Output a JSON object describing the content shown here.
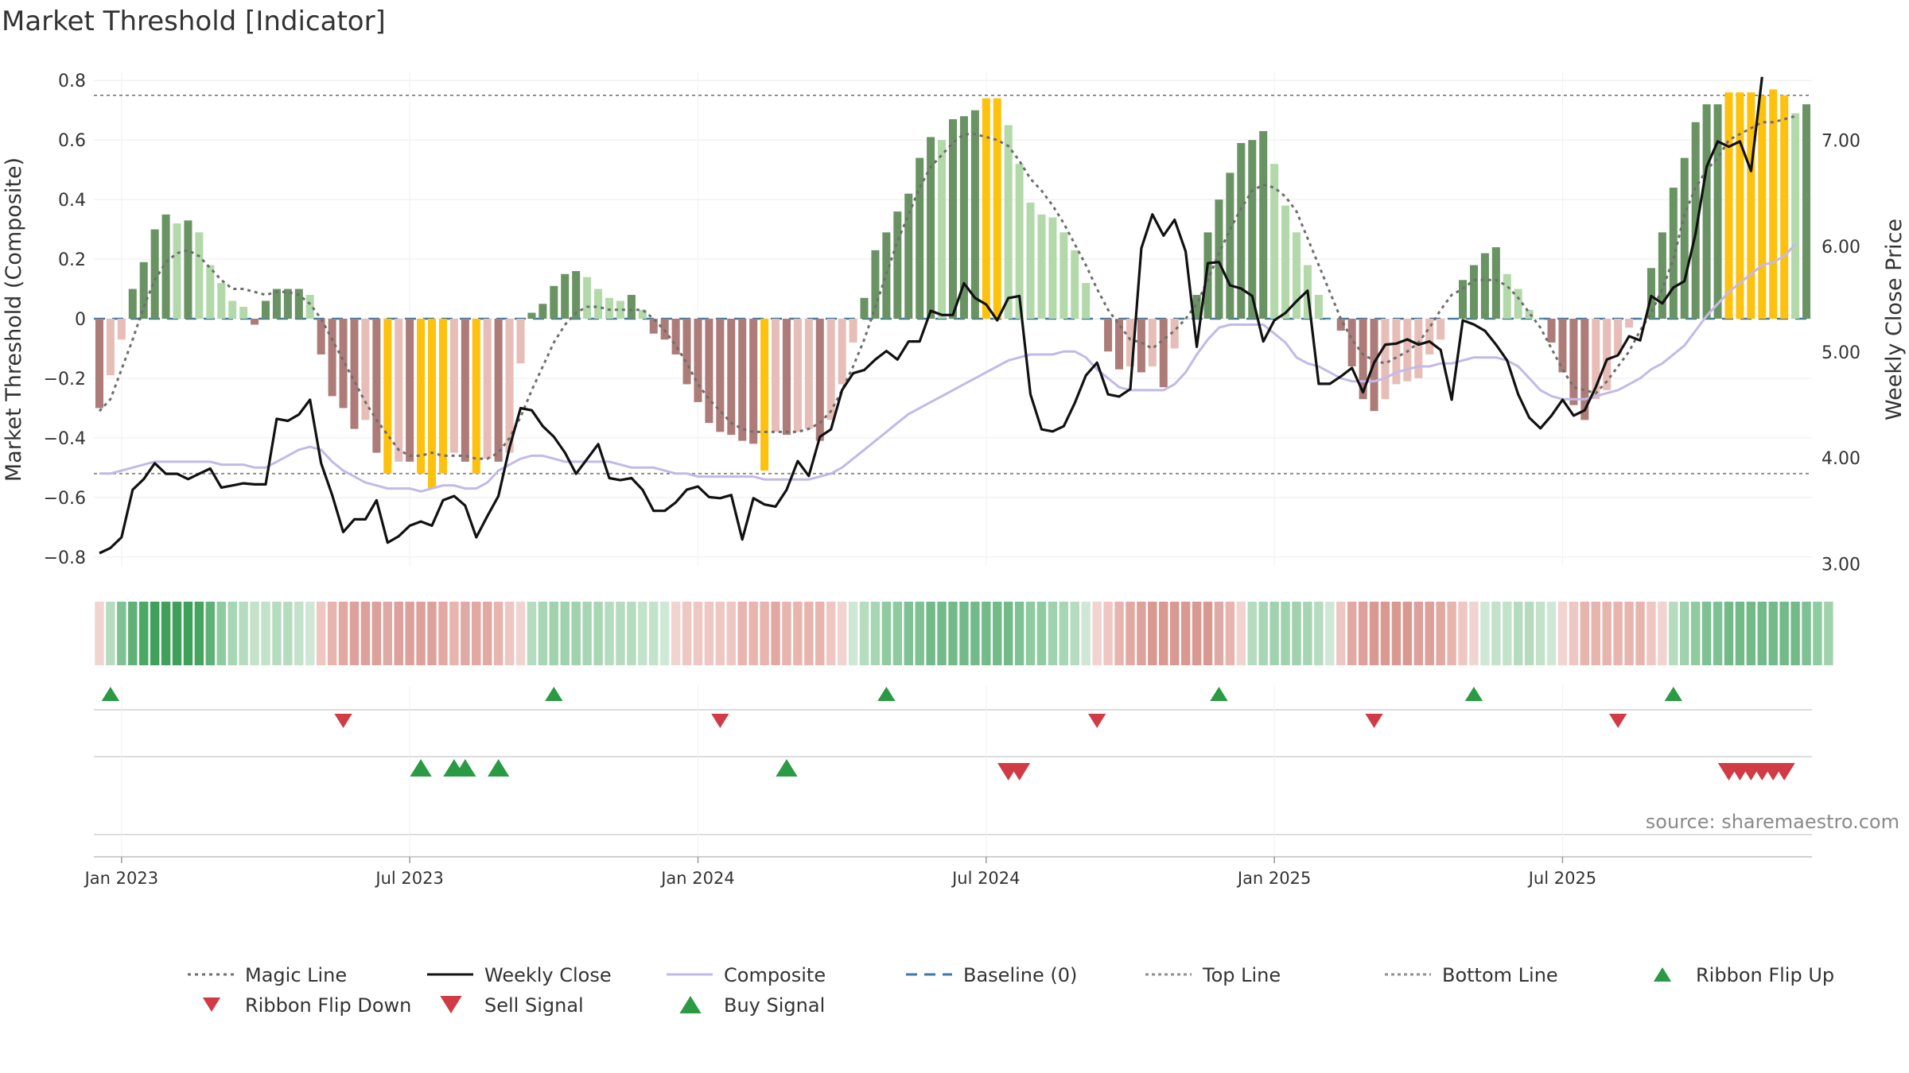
{
  "chart_data": {
    "type": "bar+line",
    "title": "Market Threshold [Indicator]",
    "ylabel": "Market Threshold (Composite)",
    "y2label": "Weekly Close Price",
    "ylim": [
      -0.83,
      0.83
    ],
    "y2lim": [
      2.98,
      7.65
    ],
    "yticks": [
      "0.8",
      "0.6",
      "0.4",
      "0.2",
      "0",
      "−0.2",
      "−0.4",
      "−0.6",
      "−0.8"
    ],
    "ytick_values": [
      0.8,
      0.6,
      0.4,
      0.2,
      0,
      -0.2,
      -0.4,
      -0.6,
      -0.8
    ],
    "y2ticks": [
      "7.00",
      "6.00",
      "5.00",
      "4.00",
      "3.00"
    ],
    "y2tick_values": [
      7,
      6,
      5,
      4,
      3
    ],
    "xticks": [
      "Jan 2023",
      "Jul 2023",
      "Jan 2024",
      "Jul 2024",
      "Jan 2025",
      "Jul 2025"
    ],
    "xtick_weeks": [
      2,
      28,
      54,
      80,
      106,
      132
    ],
    "source": "source: sharemaestro.com",
    "top_line": 0.75,
    "bottom_line": -0.52,
    "baseline": 0,
    "colors": {
      "pos_dark": "#6a9364",
      "pos_light": "#b3d9ab",
      "neg_dark": "#ad7c78",
      "neg_light": "#e7bdb8",
      "extreme": "#fdc10e",
      "close": "#111111",
      "composite": "#c3b9e8",
      "magic": "#6e6e6e",
      "baseline": "#3b7aa8",
      "guide": "#8f8f8f",
      "up": "#2a9a44",
      "down": "#d03b45"
    },
    "series": [
      {
        "name": "Market Threshold Histogram",
        "values": [
          -0.3,
          -0.19,
          -0.07,
          0.1,
          0.19,
          0.3,
          0.35,
          0.32,
          0.33,
          0.29,
          0.18,
          0.12,
          0.06,
          0.04,
          -0.02,
          0.06,
          0.1,
          0.1,
          0.1,
          0.08,
          -0.12,
          -0.26,
          -0.3,
          -0.37,
          -0.34,
          -0.45,
          -0.52,
          -0.48,
          -0.48,
          -0.52,
          -0.57,
          -0.52,
          -0.45,
          -0.48,
          -0.52,
          -0.47,
          -0.48,
          -0.45,
          -0.15,
          0.02,
          0.05,
          0.11,
          0.15,
          0.16,
          0.14,
          0.1,
          0.07,
          0.06,
          0.08,
          0.03,
          -0.05,
          -0.07,
          -0.12,
          -0.22,
          -0.28,
          -0.35,
          -0.38,
          -0.39,
          -0.41,
          -0.42,
          -0.51,
          -0.38,
          -0.39,
          -0.38,
          -0.37,
          -0.41,
          -0.34,
          -0.22,
          -0.08,
          0.07,
          0.23,
          0.29,
          0.36,
          0.42,
          0.54,
          0.61,
          0.6,
          0.67,
          0.68,
          0.7,
          0.74,
          0.74,
          0.65,
          0.52,
          0.39,
          0.35,
          0.34,
          0.29,
          0.23,
          0.12,
          0.0,
          -0.11,
          -0.17,
          -0.16,
          -0.18,
          -0.16,
          -0.23,
          -0.1,
          0.0,
          0.08,
          0.29,
          0.4,
          0.49,
          0.59,
          0.6,
          0.63,
          0.52,
          0.38,
          0.29,
          0.18,
          0.08,
          0.0,
          -0.04,
          -0.16,
          -0.27,
          -0.31,
          -0.27,
          -0.22,
          -0.21,
          -0.2,
          -0.12,
          -0.07,
          0.0,
          0.13,
          0.18,
          0.22,
          0.24,
          0.15,
          0.1,
          0.03,
          0.0,
          -0.08,
          -0.18,
          -0.29,
          -0.34,
          -0.27,
          -0.24,
          -0.12,
          -0.03,
          0.0,
          0.17,
          0.29,
          0.44,
          0.54,
          0.66,
          0.72,
          0.72,
          0.76,
          0.76,
          0.76,
          0.75,
          0.77,
          0.75,
          0.69,
          0.72
        ]
      },
      {
        "name": "Magic Line",
        "values": [
          -0.31,
          -0.27,
          -0.17,
          -0.07,
          0.04,
          0.13,
          0.19,
          0.22,
          0.23,
          0.21,
          0.17,
          0.13,
          0.1,
          0.1,
          0.09,
          0.08,
          0.09,
          0.09,
          0.08,
          0.05,
          0.0,
          -0.07,
          -0.14,
          -0.21,
          -0.28,
          -0.34,
          -0.39,
          -0.44,
          -0.46,
          -0.46,
          -0.45,
          -0.46,
          -0.46,
          -0.46,
          -0.47,
          -0.47,
          -0.45,
          -0.4,
          -0.33,
          -0.24,
          -0.16,
          -0.08,
          -0.02,
          0.02,
          0.04,
          0.04,
          0.03,
          0.03,
          0.03,
          0.03,
          0.0,
          -0.04,
          -0.09,
          -0.15,
          -0.22,
          -0.27,
          -0.31,
          -0.35,
          -0.37,
          -0.38,
          -0.38,
          -0.38,
          -0.38,
          -0.38,
          -0.37,
          -0.35,
          -0.31,
          -0.24,
          -0.16,
          -0.07,
          0.04,
          0.15,
          0.26,
          0.35,
          0.44,
          0.51,
          0.55,
          0.59,
          0.62,
          0.62,
          0.61,
          0.6,
          0.58,
          0.53,
          0.47,
          0.43,
          0.38,
          0.32,
          0.25,
          0.18,
          0.1,
          0.03,
          -0.02,
          -0.07,
          -0.08,
          -0.1,
          -0.07,
          -0.04,
          0.0,
          0.05,
          0.13,
          0.22,
          0.3,
          0.37,
          0.43,
          0.45,
          0.44,
          0.41,
          0.36,
          0.27,
          0.18,
          0.09,
          0.0,
          -0.07,
          -0.12,
          -0.14,
          -0.15,
          -0.13,
          -0.11,
          -0.08,
          -0.03,
          0.03,
          0.08,
          0.1,
          0.13,
          0.13,
          0.13,
          0.11,
          0.07,
          0.02,
          -0.03,
          -0.1,
          -0.17,
          -0.23,
          -0.24,
          -0.25,
          -0.21,
          -0.16,
          -0.11,
          -0.04,
          0.02,
          0.1,
          0.2,
          0.35,
          0.44,
          0.5,
          0.54,
          0.6,
          0.62,
          0.64,
          0.66,
          0.66,
          0.67,
          0.68
        ]
      },
      {
        "name": "Composite",
        "values": [
          -0.52,
          -0.52,
          -0.51,
          -0.5,
          -0.49,
          -0.48,
          -0.48,
          -0.48,
          -0.48,
          -0.48,
          -0.48,
          -0.49,
          -0.49,
          -0.49,
          -0.5,
          -0.5,
          -0.48,
          -0.46,
          -0.44,
          -0.43,
          -0.44,
          -0.48,
          -0.51,
          -0.53,
          -0.55,
          -0.56,
          -0.57,
          -0.57,
          -0.57,
          -0.58,
          -0.57,
          -0.56,
          -0.56,
          -0.57,
          -0.57,
          -0.55,
          -0.51,
          -0.49,
          -0.47,
          -0.46,
          -0.46,
          -0.47,
          -0.48,
          -0.48,
          -0.48,
          -0.48,
          -0.48,
          -0.49,
          -0.5,
          -0.5,
          -0.5,
          -0.51,
          -0.52,
          -0.52,
          -0.53,
          -0.53,
          -0.53,
          -0.53,
          -0.53,
          -0.53,
          -0.54,
          -0.54,
          -0.54,
          -0.54,
          -0.54,
          -0.53,
          -0.52,
          -0.5,
          -0.47,
          -0.44,
          -0.41,
          -0.38,
          -0.35,
          -0.32,
          -0.3,
          -0.28,
          -0.26,
          -0.24,
          -0.22,
          -0.2,
          -0.18,
          -0.16,
          -0.14,
          -0.13,
          -0.12,
          -0.12,
          -0.12,
          -0.11,
          -0.11,
          -0.13,
          -0.17,
          -0.2,
          -0.23,
          -0.24,
          -0.24,
          -0.24,
          -0.24,
          -0.22,
          -0.18,
          -0.12,
          -0.07,
          -0.03,
          -0.02,
          -0.02,
          -0.02,
          -0.02,
          -0.05,
          -0.08,
          -0.13,
          -0.15,
          -0.16,
          -0.18,
          -0.2,
          -0.21,
          -0.21,
          -0.21,
          -0.2,
          -0.18,
          -0.17,
          -0.16,
          -0.16,
          -0.15,
          -0.15,
          -0.14,
          -0.13,
          -0.13,
          -0.13,
          -0.14,
          -0.16,
          -0.2,
          -0.24,
          -0.26,
          -0.27,
          -0.27,
          -0.27,
          -0.26,
          -0.25,
          -0.24,
          -0.22,
          -0.2,
          -0.17,
          -0.15,
          -0.12,
          -0.09,
          -0.04,
          0.01,
          0.05,
          0.09,
          0.12,
          0.15,
          0.18,
          0.19,
          0.21,
          0.25
        ]
      },
      {
        "name": "Weekly Close",
        "values": [
          3.1,
          3.15,
          3.25,
          3.7,
          3.8,
          3.95,
          3.85,
          3.85,
          3.8,
          3.85,
          3.9,
          3.72,
          3.74,
          3.76,
          3.75,
          3.75,
          4.37,
          4.35,
          4.41,
          4.55,
          3.95,
          3.65,
          3.3,
          3.42,
          3.42,
          3.6,
          3.2,
          3.26,
          3.36,
          3.4,
          3.36,
          3.6,
          3.64,
          3.55,
          3.25,
          3.45,
          3.64,
          4.1,
          4.47,
          4.45,
          4.3,
          4.2,
          4.05,
          3.85,
          3.99,
          4.13,
          3.81,
          3.79,
          3.81,
          3.7,
          3.5,
          3.5,
          3.58,
          3.7,
          3.73,
          3.63,
          3.62,
          3.65,
          3.23,
          3.62,
          3.56,
          3.54,
          3.7,
          3.97,
          3.83,
          4.2,
          4.27,
          4.64,
          4.8,
          4.83,
          4.93,
          5.01,
          4.93,
          5.1,
          5.1,
          5.39,
          5.35,
          5.35,
          5.65,
          5.51,
          5.45,
          5.3,
          5.51,
          5.53,
          4.6,
          4.27,
          4.25,
          4.3,
          4.52,
          4.78,
          4.9,
          4.6,
          4.58,
          4.65,
          5.98,
          6.3,
          6.1,
          6.25,
          5.95,
          5.05,
          5.84,
          5.85,
          5.63,
          5.6,
          5.53,
          5.1,
          5.3,
          5.37,
          5.48,
          5.58,
          4.7,
          4.7,
          4.77,
          4.85,
          4.62,
          4.9,
          5.07,
          5.08,
          5.12,
          5.07,
          5.1,
          5.02,
          4.55,
          5.3,
          5.26,
          5.2,
          5.07,
          4.92,
          4.6,
          4.38,
          4.28,
          4.4,
          4.55,
          4.4,
          4.45,
          4.67,
          4.93,
          4.97,
          5.15,
          5.11,
          5.53,
          5.46,
          5.61,
          5.67,
          6.12,
          6.75,
          6.99,
          6.94,
          6.99,
          6.71,
          7.6
        ]
      }
    ],
    "ribbon": [
      "#f1d3d0",
      "#b5dcbe",
      "#7ec194",
      "#5fb177",
      "#4aa965",
      "#3ea05a",
      "#3ea05a",
      "#3ea05a",
      "#3ea05a",
      "#45a55f",
      "#5fb177",
      "#8ecb9f",
      "#a7d6b4",
      "#b5dcbe",
      "#c2e2c9",
      "#c2e2c9",
      "#b5dcbe",
      "#b5dcbe",
      "#c2e2c9",
      "#cfe8d5",
      "#eec7c3",
      "#e8b4ae",
      "#e2a8a2",
      "#dea09a",
      "#dea09a",
      "#dea09a",
      "#deaaa5",
      "#dea09a",
      "#dea09a",
      "#dea09a",
      "#dea09a",
      "#e2a8a2",
      "#e8b4ae",
      "#deaaa5",
      "#e2a8a2",
      "#e2a8a2",
      "#e8b4ae",
      "#eec7c3",
      "#f1d3d0",
      "#b5dcbe",
      "#a7d6b4",
      "#9fd2ad",
      "#9fd2ad",
      "#9fd2ad",
      "#a7d6b4",
      "#a7d6b4",
      "#b5dcbe",
      "#b5dcbe",
      "#b5dcbe",
      "#c2e2c9",
      "#c2e2c9",
      "#cfe8d5",
      "#f1d3d0",
      "#eec7c3",
      "#eec7c3",
      "#eec7c3",
      "#eec7c3",
      "#eec7c3",
      "#e8b4ae",
      "#e8b4ae",
      "#e8b4ae",
      "#e2a8a2",
      "#e8b4ae",
      "#e8b4ae",
      "#e8b4ae",
      "#e8b4ae",
      "#eec7c3",
      "#f1d3d0",
      "#cfe8d5",
      "#b5dcbe",
      "#a7d6b4",
      "#8ecb9f",
      "#8ecb9f",
      "#7ec194",
      "#7ec194",
      "#72bb89",
      "#72bb89",
      "#72bb89",
      "#72bb89",
      "#72bb89",
      "#72bb89",
      "#72bb89",
      "#72bb89",
      "#7ec194",
      "#8ecb9f",
      "#8ecb9f",
      "#9fd2ad",
      "#a7d6b4",
      "#b5dcbe",
      "#cfe8d5",
      "#f1d3d0",
      "#eec7c3",
      "#e8b4ae",
      "#e2a8a2",
      "#dea09a",
      "#d99890",
      "#d99890",
      "#d99890",
      "#d99890",
      "#d99890",
      "#d99890",
      "#deaaa5",
      "#e8b4ae",
      "#f1d3d0",
      "#b5dcbe",
      "#a7d6b4",
      "#9fd2ad",
      "#9fd2ad",
      "#9fd2ad",
      "#a7d6b4",
      "#b5dcbe",
      "#cfe8d5",
      "#eec7c3",
      "#e2a8a2",
      "#dea09a",
      "#d99890",
      "#d99890",
      "#d99890",
      "#d99890",
      "#dea09a",
      "#dea09a",
      "#e2a8a2",
      "#e8b4ae",
      "#eec7c3",
      "#f1d3d0",
      "#cfe8d5",
      "#c2e2c9",
      "#c2e2c9",
      "#b5dcbe",
      "#b5dcbe",
      "#c2e2c9",
      "#cfe8d5",
      "#f1d3d0",
      "#eec7c3",
      "#e8b4ae",
      "#e8b4ae",
      "#e8b4ae",
      "#e8b4ae",
      "#e8b4ae",
      "#e8b4ae",
      "#eec7c3",
      "#f1d3d0",
      "#b5dcbe",
      "#9fd2ad",
      "#8ecb9f",
      "#7ec194",
      "#7ec194",
      "#72bb89",
      "#72bb89",
      "#72bb89",
      "#72bb89",
      "#72bb89",
      "#72bb89",
      "#72bb89",
      "#7ec194",
      "#8ecb9f",
      "#9fd2ad"
    ],
    "ribbon_flip_up_weeks": [
      1,
      41,
      71,
      101,
      124,
      142
    ],
    "ribbon_flip_down_weeks": [
      22,
      56,
      90,
      115,
      137
    ],
    "buy_signal_weeks": [
      29,
      32,
      33,
      36,
      62
    ],
    "sell_signal_weeks": [
      82,
      83,
      147,
      148,
      149,
      150,
      151,
      152
    ]
  },
  "legend": [
    {
      "label": "Magic Line",
      "icon": "dotted-line"
    },
    {
      "label": "Weekly Close",
      "icon": "solid-line"
    },
    {
      "label": "Composite",
      "icon": "solid-line"
    },
    {
      "label": "Baseline (0)",
      "icon": "dashed-line"
    },
    {
      "label": "Top Line",
      "icon": "dotted-line"
    },
    {
      "label": "Bottom Line",
      "icon": "dotted-line"
    },
    {
      "label": "Ribbon Flip Up",
      "icon": "triangle-up-icon"
    },
    {
      "label": "Ribbon Flip Down",
      "icon": "triangle-down-icon"
    },
    {
      "label": "Sell Signal",
      "icon": "triangle-down-icon"
    },
    {
      "label": "Buy Signal",
      "icon": "triangle-up-icon"
    }
  ]
}
